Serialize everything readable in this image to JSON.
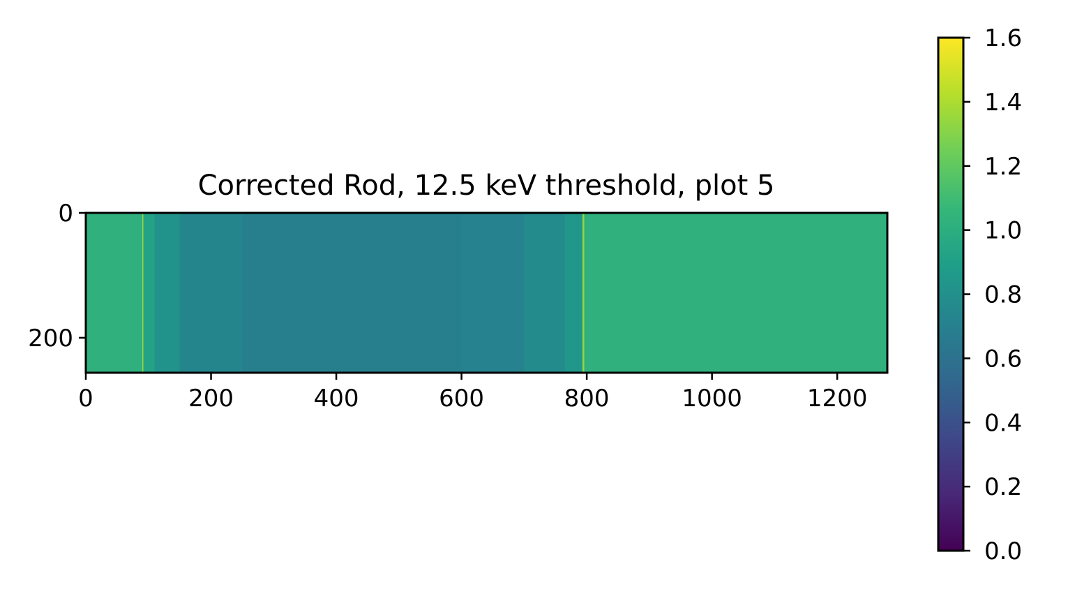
{
  "chart_data": {
    "type": "heatmap",
    "title": "Corrected Rod, 12.5 keV threshold, plot 5",
    "xlabel": "",
    "ylabel": "",
    "image_size": {
      "columns": 1280,
      "rows": 256
    },
    "xlim": [
      0,
      1280
    ],
    "ylim": [
      256,
      0
    ],
    "x_ticks": [
      {
        "value": 0,
        "label": "0"
      },
      {
        "value": 200,
        "label": "200"
      },
      {
        "value": 400,
        "label": "400"
      },
      {
        "value": 600,
        "label": "600"
      },
      {
        "value": 800,
        "label": "800"
      },
      {
        "value": 1000,
        "label": "1000"
      },
      {
        "value": 1200,
        "label": "1200"
      }
    ],
    "y_ticks": [
      {
        "value": 0,
        "label": "0"
      },
      {
        "value": 200,
        "label": "200"
      }
    ],
    "colormap": "viridis",
    "colorbar": {
      "range": [
        0.0,
        1.6
      ],
      "ticks": [
        {
          "value": 0.0,
          "label": "0.0"
        },
        {
          "value": 0.2,
          "label": "0.2"
        },
        {
          "value": 0.4,
          "label": "0.4"
        },
        {
          "value": 0.6,
          "label": "0.6"
        },
        {
          "value": 0.8,
          "label": "0.8"
        },
        {
          "value": 1.0,
          "label": "1.0"
        },
        {
          "value": 1.2,
          "label": "1.2"
        },
        {
          "value": 1.4,
          "label": "1.4"
        },
        {
          "value": 1.6,
          "label": "1.6"
        }
      ],
      "colors": [
        "#440154",
        "#482878",
        "#3e4989",
        "#31688e",
        "#26828e",
        "#1f9e89",
        "#35b779",
        "#6ece58",
        "#b5de2b",
        "#fde725"
      ]
    },
    "column_profile": [
      {
        "x_start": 0,
        "x_end": 90,
        "value": 1.02
      },
      {
        "x_start": 90,
        "x_end": 92,
        "value": 1.35
      },
      {
        "x_start": 92,
        "x_end": 110,
        "value": 0.92
      },
      {
        "x_start": 110,
        "x_end": 150,
        "value": 0.82
      },
      {
        "x_start": 150,
        "x_end": 250,
        "value": 0.73
      },
      {
        "x_start": 250,
        "x_end": 600,
        "value": 0.69
      },
      {
        "x_start": 600,
        "x_end": 700,
        "value": 0.71
      },
      {
        "x_start": 700,
        "x_end": 765,
        "value": 0.77
      },
      {
        "x_start": 765,
        "x_end": 793,
        "value": 0.84
      },
      {
        "x_start": 793,
        "x_end": 796,
        "value": 1.35
      },
      {
        "x_start": 796,
        "x_end": 1280,
        "value": 1.02
      }
    ]
  }
}
